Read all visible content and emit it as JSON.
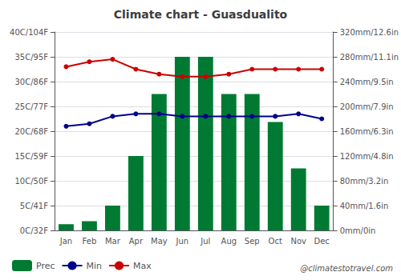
{
  "chart_data": {
    "type": "bar",
    "title": "Climate chart - Guasdualito",
    "categories": [
      "Jan",
      "Feb",
      "Mar",
      "Apr",
      "May",
      "Jun",
      "Jul",
      "Aug",
      "Sep",
      "Oct",
      "Nov",
      "Dec"
    ],
    "series": [
      {
        "name": "Prec",
        "type": "bar",
        "axis": "y2",
        "color": "#007a33",
        "values": [
          10,
          15,
          40,
          120,
          220,
          280,
          280,
          220,
          220,
          175,
          100,
          40
        ]
      },
      {
        "name": "Min",
        "type": "line",
        "color": "#00008b",
        "marker": "circle",
        "values": [
          21.0,
          21.5,
          23.0,
          23.5,
          23.5,
          23.0,
          23.0,
          23.0,
          23.0,
          23.0,
          23.5,
          22.5
        ]
      },
      {
        "name": "Max",
        "type": "line",
        "color": "#cc0000",
        "marker": "circle",
        "values": [
          33.0,
          34.0,
          34.5,
          32.5,
          31.5,
          31.0,
          31.0,
          31.5,
          32.5,
          32.5,
          32.5,
          32.5
        ]
      }
    ],
    "ylim": [
      0,
      40
    ],
    "yticks": [
      {
        "value": 0,
        "label": "0C/32F"
      },
      {
        "value": 5,
        "label": "5C/41F"
      },
      {
        "value": 10,
        "label": "10C/50F"
      },
      {
        "value": 15,
        "label": "15C/59F"
      },
      {
        "value": 20,
        "label": "20C/68F"
      },
      {
        "value": 25,
        "label": "25C/77F"
      },
      {
        "value": 30,
        "label": "30C/86F"
      },
      {
        "value": 35,
        "label": "35C/95F"
      },
      {
        "value": 40,
        "label": "40C/104F"
      }
    ],
    "y2lim": [
      0,
      320
    ],
    "y2ticks": [
      {
        "value": 0,
        "label": "0mm/0in"
      },
      {
        "value": 40,
        "label": "40mm/1.6in"
      },
      {
        "value": 80,
        "label": "80mm/3.2in"
      },
      {
        "value": 120,
        "label": "120mm/4.8in"
      },
      {
        "value": 160,
        "label": "160mm/6.3in"
      },
      {
        "value": 200,
        "label": "200mm/7.9in"
      },
      {
        "value": 240,
        "label": "240mm/9.5in"
      },
      {
        "value": 280,
        "label": "280mm/11.1in"
      },
      {
        "value": 320,
        "label": "320mm/12.6in"
      }
    ],
    "grid": true,
    "legend": "bottom left",
    "annotations": [
      "@climatestotravel.com"
    ]
  }
}
